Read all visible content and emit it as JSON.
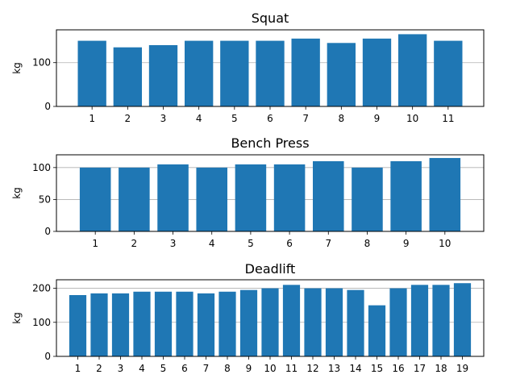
{
  "chart_data": [
    {
      "type": "bar",
      "title": "Squat",
      "xlabel": "",
      "ylabel": "kg",
      "categories": [
        "1",
        "2",
        "3",
        "4",
        "5",
        "6",
        "7",
        "8",
        "9",
        "10",
        "11"
      ],
      "values": [
        150,
        135,
        140,
        150,
        150,
        150,
        155,
        145,
        155,
        165,
        150
      ],
      "ylim": [
        0,
        175
      ],
      "yticks": [
        0,
        100
      ],
      "xlim": [
        0.0,
        12.0
      ],
      "grid": "y",
      "color": "#1f77b4"
    },
    {
      "type": "bar",
      "title": "Bench Press",
      "xlabel": "",
      "ylabel": "kg",
      "categories": [
        "1",
        "2",
        "3",
        "4",
        "5",
        "6",
        "7",
        "8",
        "9",
        "10"
      ],
      "values": [
        100,
        100,
        105,
        100,
        105,
        105,
        110,
        100,
        110,
        115
      ],
      "ylim": [
        0,
        120
      ],
      "yticks": [
        0,
        50,
        100
      ],
      "xlim": [
        0.0,
        11.0
      ],
      "grid": "y",
      "color": "#1f77b4"
    },
    {
      "type": "bar",
      "title": "Deadlift",
      "xlabel": "",
      "ylabel": "kg",
      "categories": [
        "1",
        "2",
        "3",
        "4",
        "5",
        "6",
        "7",
        "8",
        "9",
        "10",
        "11",
        "12",
        "13",
        "14",
        "15",
        "16",
        "17",
        "18",
        "19"
      ],
      "values": [
        180,
        185,
        185,
        190,
        190,
        190,
        185,
        190,
        195,
        200,
        210,
        200,
        200,
        195,
        150,
        200,
        210,
        210,
        215
      ],
      "ylim": [
        0,
        225
      ],
      "yticks": [
        0,
        100,
        200
      ],
      "xlim": [
        0.0,
        20.0
      ],
      "grid": "y",
      "color": "#1f77b4"
    }
  ]
}
